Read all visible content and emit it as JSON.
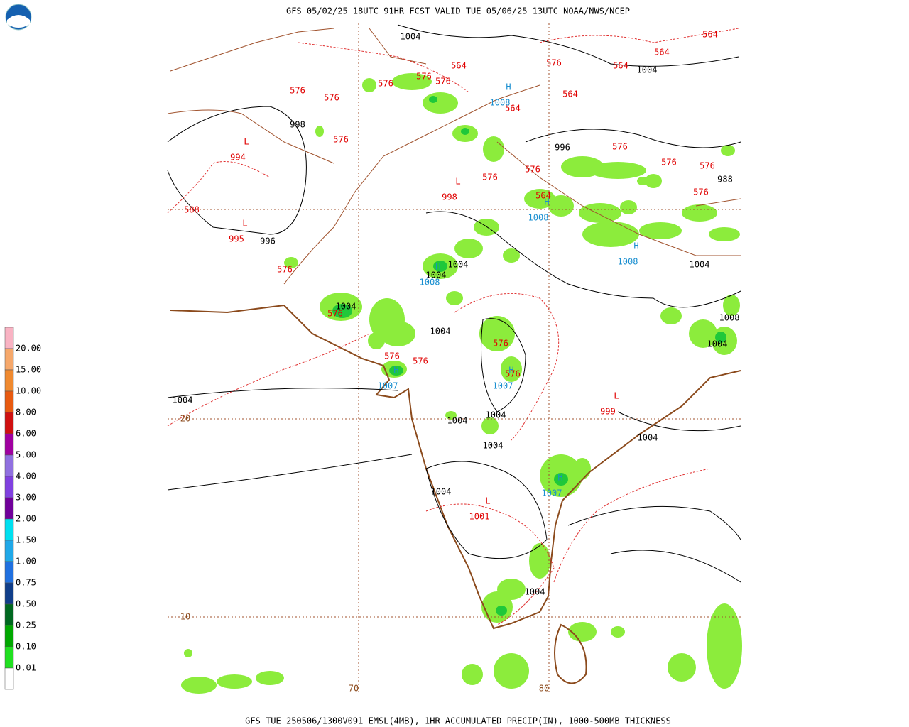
{
  "header": {
    "title": "GFS 05/02/25 18UTC 91HR FCST VALID TUE 05/06/25 13UTC NOAA/NWS/NCEP"
  },
  "footer": {
    "text": "GFS TUE 250506/1300V091 EMSL(4MB), 1HR ACCUMULATED PRECIP(IN), 1000-500MB THICKNESS"
  },
  "legend": {
    "labels": [
      "20.00",
      "15.00",
      "10.00",
      "8.00",
      "6.00",
      "5.00",
      "4.00",
      "3.00",
      "2.00",
      "1.50",
      "1.00",
      "0.75",
      "0.50",
      "0.25",
      "0.10",
      "0.01"
    ]
  },
  "map": {
    "lon_labels": [
      "70",
      "80"
    ],
    "lat_labels": [
      "20",
      "10"
    ],
    "isobar_labels": [
      "1004",
      "1004",
      "998",
      "996",
      "996",
      "988",
      "1004",
      "1004",
      "1004",
      "1004",
      "1004",
      "1004",
      "1008",
      "1004",
      "1004",
      "1004",
      "1004",
      "1004",
      "1004",
      "1004"
    ],
    "thickness_labels": [
      "564",
      "564",
      "564",
      "576",
      "564",
      "576",
      "576",
      "576",
      "576",
      "576",
      "564",
      "564",
      "576",
      "576",
      "576",
      "576",
      "576",
      "576",
      "576",
      "564",
      "588",
      "576",
      "576",
      "576",
      "576",
      "576",
      "576"
    ],
    "centers": [
      {
        "symbol": "L",
        "value": "994"
      },
      {
        "symbol": "L",
        "value": "995"
      },
      {
        "symbol": "L",
        "value": "998"
      },
      {
        "symbol": "L",
        "value": "999"
      },
      {
        "symbol": "L",
        "value": "1001"
      },
      {
        "symbol": "H",
        "value": "1008"
      },
      {
        "symbol": "H",
        "value": "1008"
      },
      {
        "symbol": "H",
        "value": "1008"
      },
      {
        "symbol": "H",
        "value": "1008"
      },
      {
        "symbol": "H",
        "value": "1007"
      },
      {
        "symbol": "H",
        "value": "1007"
      },
      {
        "symbol": "H",
        "value": "1007"
      }
    ]
  }
}
